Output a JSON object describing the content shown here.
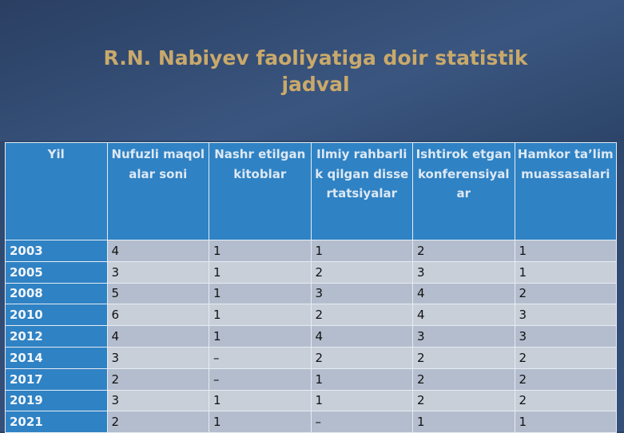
{
  "header": {
    "title": "R.N. Nabiyev faoliyatiga doir statistik jadval"
  },
  "table": {
    "columns": [
      "Yil",
      "Nufuzli maqolalar soni",
      "Nashr etilgan kitoblar",
      "Ilmiy rahbarlik qilgan dissertatsiyalar",
      "Ishtirok etgan konferensiyalar",
      "Hamkor ta’lim muassasalari"
    ],
    "rows": [
      [
        2003,
        4,
        1,
        1,
        2,
        1
      ],
      [
        2005,
        3,
        1,
        2,
        3,
        1
      ],
      [
        2008,
        5,
        1,
        3,
        4,
        2
      ],
      [
        2010,
        6,
        1,
        2,
        4,
        3
      ],
      [
        2012,
        4,
        1,
        4,
        3,
        3
      ],
      [
        2014,
        3,
        "–",
        2,
        2,
        2
      ],
      [
        2017,
        2,
        "–",
        1,
        2,
        2
      ],
      [
        2019,
        3,
        1,
        1,
        2,
        2
      ],
      [
        2021,
        2,
        1,
        "–",
        1,
        1
      ]
    ]
  }
}
